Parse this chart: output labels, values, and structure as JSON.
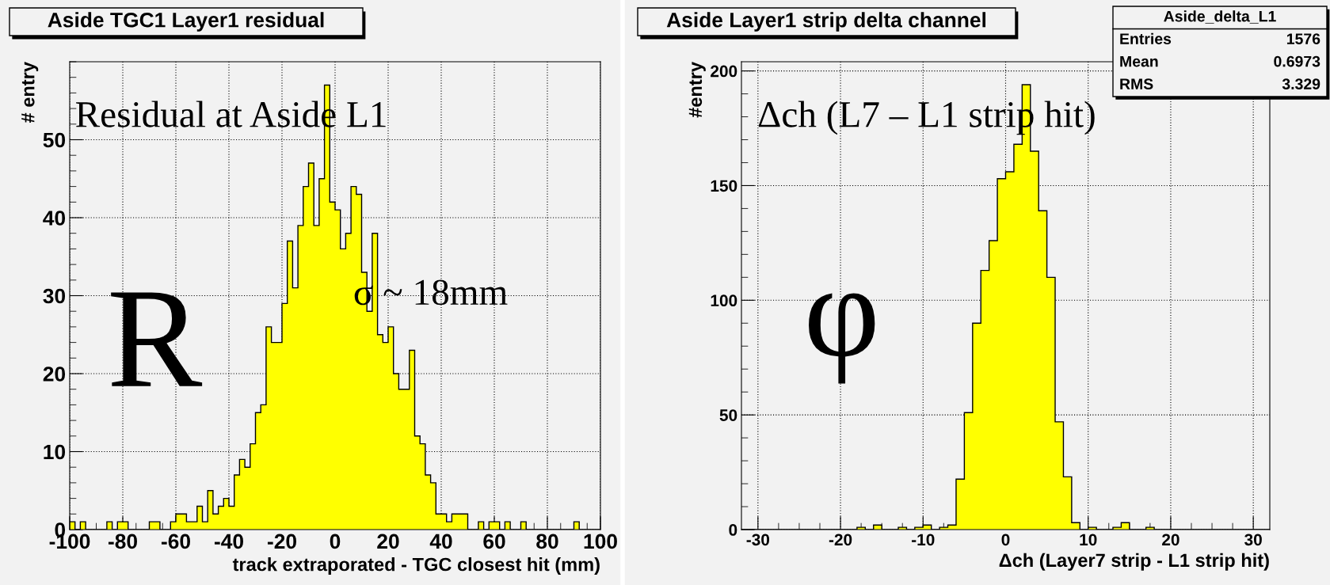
{
  "chart_data": [
    {
      "type": "histogram",
      "title": "Aside TGC1 Layer1 residual",
      "xlabel": "track extraporated - TGC closest hit (mm)",
      "ylabel": "# entry",
      "bins": [
        -100,
        -98,
        -96,
        -94,
        -92,
        -90,
        -88,
        -86,
        -84,
        -82,
        -80,
        -78,
        -76,
        -74,
        -72,
        -70,
        -68,
        -66,
        -64,
        -62,
        -60,
        -58,
        -56,
        -54,
        -52,
        -50,
        -48,
        -46,
        -44,
        -42,
        -40,
        -38,
        -36,
        -34,
        -32,
        -30,
        -28,
        -26,
        -24,
        -22,
        -20,
        -18,
        -16,
        -14,
        -12,
        -10,
        -8,
        -6,
        -4,
        -2,
        0,
        2,
        4,
        6,
        8,
        10,
        12,
        14,
        16,
        18,
        20,
        22,
        24,
        26,
        28,
        30,
        32,
        34,
        36,
        38,
        40,
        42,
        44,
        46,
        48,
        50,
        52,
        54,
        56,
        58,
        60,
        62,
        64,
        66,
        68,
        70,
        72,
        74,
        76,
        78,
        80,
        82,
        84,
        86,
        88,
        90,
        92,
        94,
        96,
        98,
        100
      ],
      "values": [
        1,
        0,
        1,
        0,
        0,
        0,
        0,
        1,
        0,
        1,
        1,
        0,
        0,
        0,
        0,
        1,
        1,
        0,
        0,
        1,
        2,
        2,
        1,
        1,
        3,
        1,
        5,
        2,
        3,
        4,
        3,
        7,
        9,
        8,
        11,
        15,
        16,
        26,
        24,
        24,
        29,
        37,
        31,
        39,
        44,
        47,
        39,
        45,
        57,
        42,
        41,
        36,
        38,
        44,
        43,
        33,
        28,
        38,
        25,
        24,
        26,
        20,
        18,
        18,
        23,
        12,
        11,
        7,
        6,
        2,
        2,
        1,
        2,
        2,
        2,
        0,
        0,
        1,
        0,
        1,
        1,
        0,
        1,
        0,
        0,
        1,
        0,
        0,
        0,
        0,
        0,
        0,
        0,
        0,
        0,
        1,
        0,
        0,
        0,
        0
      ],
      "color": "#ffff00",
      "xlim": [
        -100,
        100
      ],
      "xticks": [
        -100,
        -80,
        -60,
        -40,
        -20,
        0,
        20,
        40,
        60,
        80,
        100
      ],
      "ylim": [
        0,
        60
      ],
      "yticks": [
        0,
        10,
        20,
        30,
        40,
        50
      ],
      "grid": true,
      "annotations": [
        "Residual at Aside L1",
        "R",
        "σ ~ 18mm"
      ]
    },
    {
      "type": "histogram",
      "title": "Aside Layer1 strip delta channel",
      "xlabel": "Δch (Layer7 strip - L1 strip hit)",
      "ylabel": "#entry",
      "bins": [
        -32,
        -31,
        -30,
        -29,
        -28,
        -27,
        -26,
        -25,
        -24,
        -23,
        -22,
        -21,
        -20,
        -19,
        -18,
        -17,
        -16,
        -15,
        -14,
        -13,
        -12,
        -11,
        -10,
        -9,
        -8,
        -7,
        -6,
        -5,
        -4,
        -3,
        -2,
        -1,
        0,
        1,
        2,
        3,
        4,
        5,
        6,
        7,
        8,
        9,
        10,
        11,
        12,
        13,
        14,
        15,
        16,
        17,
        18,
        19,
        20,
        21,
        22,
        23,
        24,
        25,
        26,
        27,
        28,
        29,
        30,
        31,
        32
      ],
      "values": [
        0,
        0,
        0,
        0,
        0,
        0,
        0,
        0,
        0,
        0,
        0,
        0,
        0,
        0,
        1,
        0,
        2,
        0,
        0,
        1,
        0,
        1,
        2,
        0,
        1,
        2,
        22,
        51,
        90,
        113,
        126,
        153,
        156,
        168,
        194,
        165,
        139,
        110,
        47,
        23,
        3,
        0,
        1,
        0,
        0,
        1,
        3,
        0,
        0,
        1,
        0,
        0,
        0,
        0,
        0,
        0,
        0,
        0,
        0,
        0,
        0,
        0,
        0,
        0
      ],
      "color": "#ffff00",
      "xlim": [
        -32,
        32
      ],
      "xticks": [
        -30,
        -20,
        -10,
        0,
        10,
        20,
        30
      ],
      "ylim": [
        0,
        204
      ],
      "yticks": [
        0,
        50,
        100,
        150,
        200
      ],
      "grid": true,
      "annotations": [
        "Δch (L7 – L1 strip hit)",
        "φ",
        "Aside_delta_L1",
        "Entries 1576",
        "Mean 0.6973",
        "RMS 3.329"
      ]
    }
  ]
}
